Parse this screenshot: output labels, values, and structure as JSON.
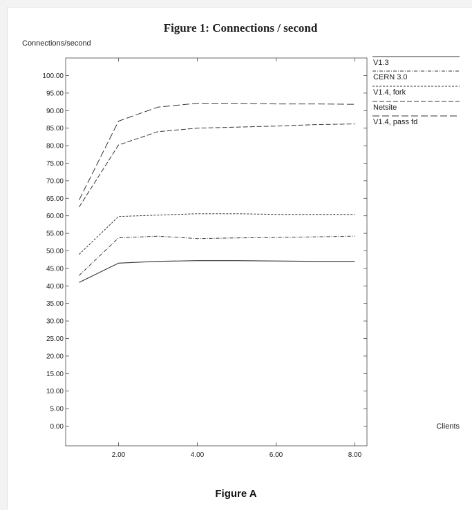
{
  "figure_caption": "Figure A",
  "chart_data": {
    "type": "line",
    "title": "Figure 1: Connections / second",
    "ylabel": "Connections/second",
    "xlabel": "Clients",
    "x": [
      1,
      2,
      3,
      4,
      5,
      6,
      7,
      8
    ],
    "xticks": [
      "2.00",
      "4.00",
      "6.00",
      "8.00"
    ],
    "xtick_values": [
      2,
      4,
      6,
      8
    ],
    "yticks": [
      "0.00",
      "5.00",
      "10.00",
      "15.00",
      "20.00",
      "25.00",
      "30.00",
      "35.00",
      "40.00",
      "45.00",
      "50.00",
      "55.00",
      "60.00",
      "65.00",
      "70.00",
      "75.00",
      "80.00",
      "85.00",
      "90.00",
      "95.00",
      "100.00"
    ],
    "ylim": [
      0,
      100
    ],
    "xlim": [
      0.7,
      9.2
    ],
    "grid": false,
    "legend_position": "right",
    "series": [
      {
        "name": "V1.3",
        "dash": "solid",
        "values": [
          41,
          46.5,
          47,
          47.2,
          47.2,
          47.1,
          47.0,
          47.0
        ]
      },
      {
        "name": "CERN 3.0",
        "dash": "dashdot",
        "values": [
          43,
          53.7,
          54.2,
          53.5,
          53.7,
          53.8,
          54.0,
          54.2
        ]
      },
      {
        "name": "V1.4, fork",
        "dash": "fine",
        "values": [
          49,
          59.8,
          60.2,
          60.6,
          60.6,
          60.4,
          60.4,
          60.4
        ]
      },
      {
        "name": "Netsite",
        "dash": "medium",
        "values": [
          62.5,
          80.2,
          84,
          85,
          85.3,
          85.6,
          86,
          86.2
        ]
      },
      {
        "name": "V1.4, pass fd",
        "dash": "long",
        "values": [
          64.5,
          87,
          91,
          92.1,
          92.1,
          91.9,
          91.9,
          91.8
        ]
      }
    ]
  }
}
